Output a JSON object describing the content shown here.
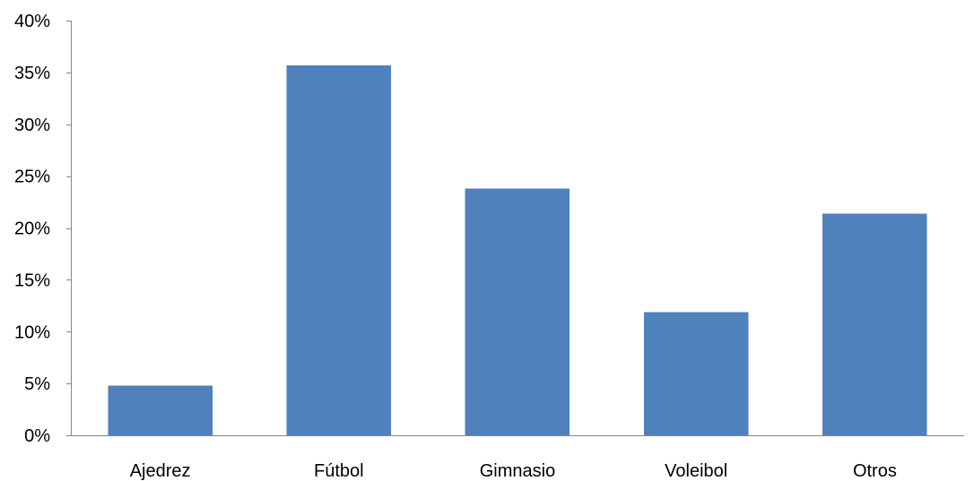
{
  "chart_data": {
    "type": "bar",
    "title": "",
    "xlabel": "",
    "ylabel": "",
    "categories": [
      "Ajedrez",
      "Fútbol",
      "Gimnasio",
      "Voleibol",
      "Otros"
    ],
    "values": [
      4.8,
      35.7,
      23.8,
      11.9,
      21.4
    ],
    "ylim": [
      0,
      40
    ],
    "yticks": [
      0,
      5,
      10,
      15,
      20,
      25,
      30,
      35,
      40
    ],
    "ytick_format": "percent",
    "grid": false,
    "legend": "none",
    "bar_color": "#4F81BD"
  }
}
